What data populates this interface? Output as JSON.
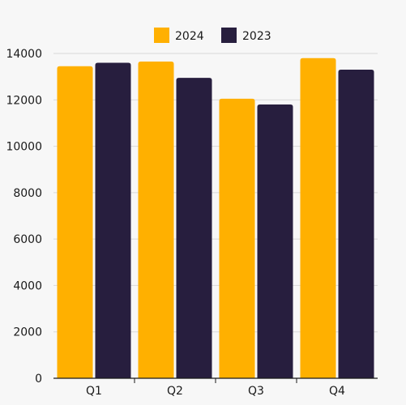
{
  "chart_data": {
    "type": "bar",
    "title": "",
    "xlabel": "",
    "ylabel": "",
    "categories": [
      "Q1",
      "Q2",
      "Q3",
      "Q4"
    ],
    "series": [
      {
        "name": "2024",
        "values": [
          13450,
          13650,
          12050,
          13800
        ],
        "color": "#ffb000"
      },
      {
        "name": "2023",
        "values": [
          13600,
          12950,
          11800,
          13300
        ],
        "color": "#271e3e"
      }
    ],
    "ylim": [
      0,
      14000
    ],
    "yticks": [
      0,
      2000,
      4000,
      6000,
      8000,
      10000,
      12000,
      14000
    ],
    "grid": true,
    "legend_position": "top-center"
  },
  "colors": {
    "background": "#f7f7f7",
    "grid": "#d9d9d9",
    "axis": "#1a1a1a"
  }
}
